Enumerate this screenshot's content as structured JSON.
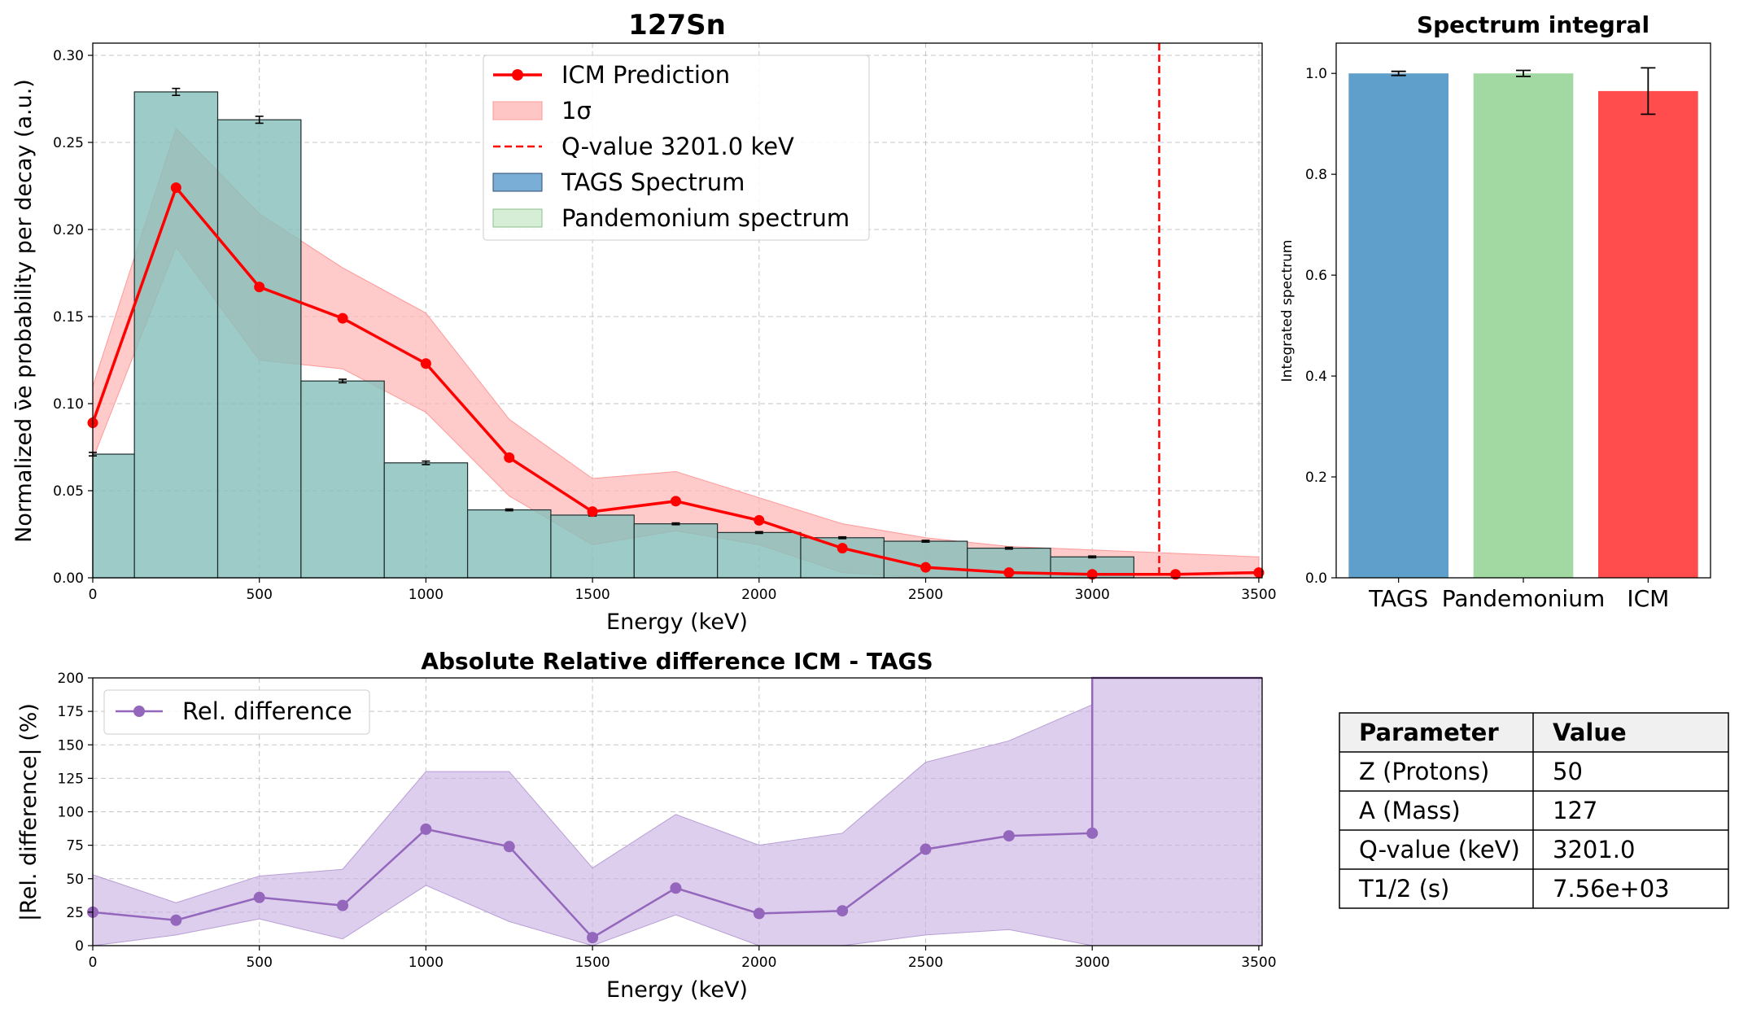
{
  "main_chart": {
    "title": "127Sn",
    "xlabel": "Energy (keV)",
    "ylabel": "Normalized ν̄e probability per decay (a.u.)",
    "xlim": [
      0,
      3510
    ],
    "ylim": [
      0,
      0.307
    ],
    "xticks": [
      0,
      500,
      1000,
      1500,
      2000,
      2500,
      3000,
      3500
    ],
    "yticks": [
      "0.00",
      "0.05",
      "0.10",
      "0.15",
      "0.20",
      "0.25",
      "0.30"
    ],
    "legend": [
      "ICM Prediction",
      "1σ",
      "Q-value 3201.0 keV",
      "TAGS Spectrum",
      "Pandemonium spectrum"
    ],
    "colors": {
      "icm": "#ff0000",
      "band": "#ffb3b3",
      "tags": "#7aaed6",
      "pandemonium": "#bfe3bf",
      "overlap": "#88bfbb"
    }
  },
  "ratio_chart": {
    "title": "Absolute Relative difference ICM - TAGS",
    "xlabel": "Energy (keV)",
    "ylabel": "|Rel. difference| (%)",
    "xlim": [
      0,
      3510
    ],
    "ylim": [
      0,
      200
    ],
    "xticks": [
      0,
      500,
      1000,
      1500,
      2000,
      2500,
      3000,
      3500
    ],
    "yticks": [
      0,
      25,
      50,
      75,
      100,
      125,
      150,
      175,
      200
    ],
    "legend": [
      "Rel. difference"
    ],
    "colors": {
      "line": "#9467bd",
      "band": "#c5aee0"
    }
  },
  "integral_chart": {
    "title": "Spectrum integral",
    "ylabel": "Integrated spectrum",
    "ylim": [
      0,
      1.06
    ],
    "yticks": [
      "0.0",
      "0.2",
      "0.4",
      "0.6",
      "0.8",
      "1.0"
    ],
    "colors": [
      "#5f9fcb",
      "#a2d9a2",
      "#ff4c4c"
    ]
  },
  "params_table": {
    "headers": [
      "Parameter",
      "Value"
    ],
    "rows": [
      [
        "Z (Protons)",
        "50"
      ],
      [
        "A (Mass)",
        "127"
      ],
      [
        "Q-value (keV)",
        "3201.0"
      ],
      [
        "T1/2 (s)",
        "7.56e+03"
      ]
    ]
  },
  "chart_data": [
    {
      "type": "bar",
      "name": "TAGS Spectrum",
      "bin_edges": [
        -125,
        125,
        375,
        625,
        875,
        1125,
        1375,
        1625,
        1875,
        2125,
        2375,
        2625,
        2875,
        3125
      ],
      "values": [
        0.071,
        0.279,
        0.263,
        0.113,
        0.066,
        0.039,
        0.036,
        0.031,
        0.026,
        0.023,
        0.021,
        0.017,
        0.012
      ],
      "errors": [
        0.001,
        0.002,
        0.002,
        0.001,
        0.001,
        0.0005,
        0.0005,
        0.0005,
        0.0005,
        0.0005,
        0.0005,
        0.0005,
        0.0005
      ]
    },
    {
      "type": "line",
      "name": "ICM Prediction",
      "x": [
        0,
        250,
        500,
        750,
        1000,
        1250,
        1500,
        1750,
        2000,
        2250,
        2500,
        2750,
        3000,
        3250,
        3500
      ],
      "y": [
        0.089,
        0.224,
        0.167,
        0.149,
        0.123,
        0.069,
        0.038,
        0.044,
        0.033,
        0.017,
        0.006,
        0.003,
        0.002,
        0.002,
        0.003
      ],
      "band_upper": [
        0.11,
        0.258,
        0.209,
        0.178,
        0.152,
        0.091,
        0.057,
        0.061,
        0.046,
        0.031,
        0.023,
        0.018,
        0.016,
        0.014,
        0.012
      ],
      "band_lower": [
        0.068,
        0.19,
        0.125,
        0.12,
        0.095,
        0.047,
        0.019,
        0.027,
        0.019,
        0.003,
        0.0,
        0.0,
        0.0,
        0.0,
        0.0
      ],
      "q_value": 3201.0
    },
    {
      "type": "line",
      "name": "Rel. difference",
      "x": [
        0,
        250,
        500,
        750,
        1000,
        1250,
        1500,
        1750,
        2000,
        2250,
        2500,
        2750,
        3000,
        3000,
        3510
      ],
      "y": [
        25,
        19,
        36,
        30,
        87,
        74,
        6,
        43,
        24,
        26,
        72,
        82,
        84,
        200,
        200
      ],
      "band_upper": [
        53,
        32,
        52,
        57,
        130,
        130,
        58,
        98,
        75,
        84,
        137,
        153,
        180,
        200,
        200
      ],
      "band_lower": [
        0,
        8,
        20,
        5,
        45,
        18,
        0,
        23,
        0,
        0,
        8,
        12,
        0,
        0,
        0
      ]
    },
    {
      "type": "bar",
      "name": "Spectrum integral",
      "categories": [
        "TAGS",
        "Pandemonium",
        "ICM"
      ],
      "values": [
        1.0,
        1.0,
        0.965
      ],
      "errors": [
        0.004,
        0.006,
        0.046
      ]
    }
  ]
}
